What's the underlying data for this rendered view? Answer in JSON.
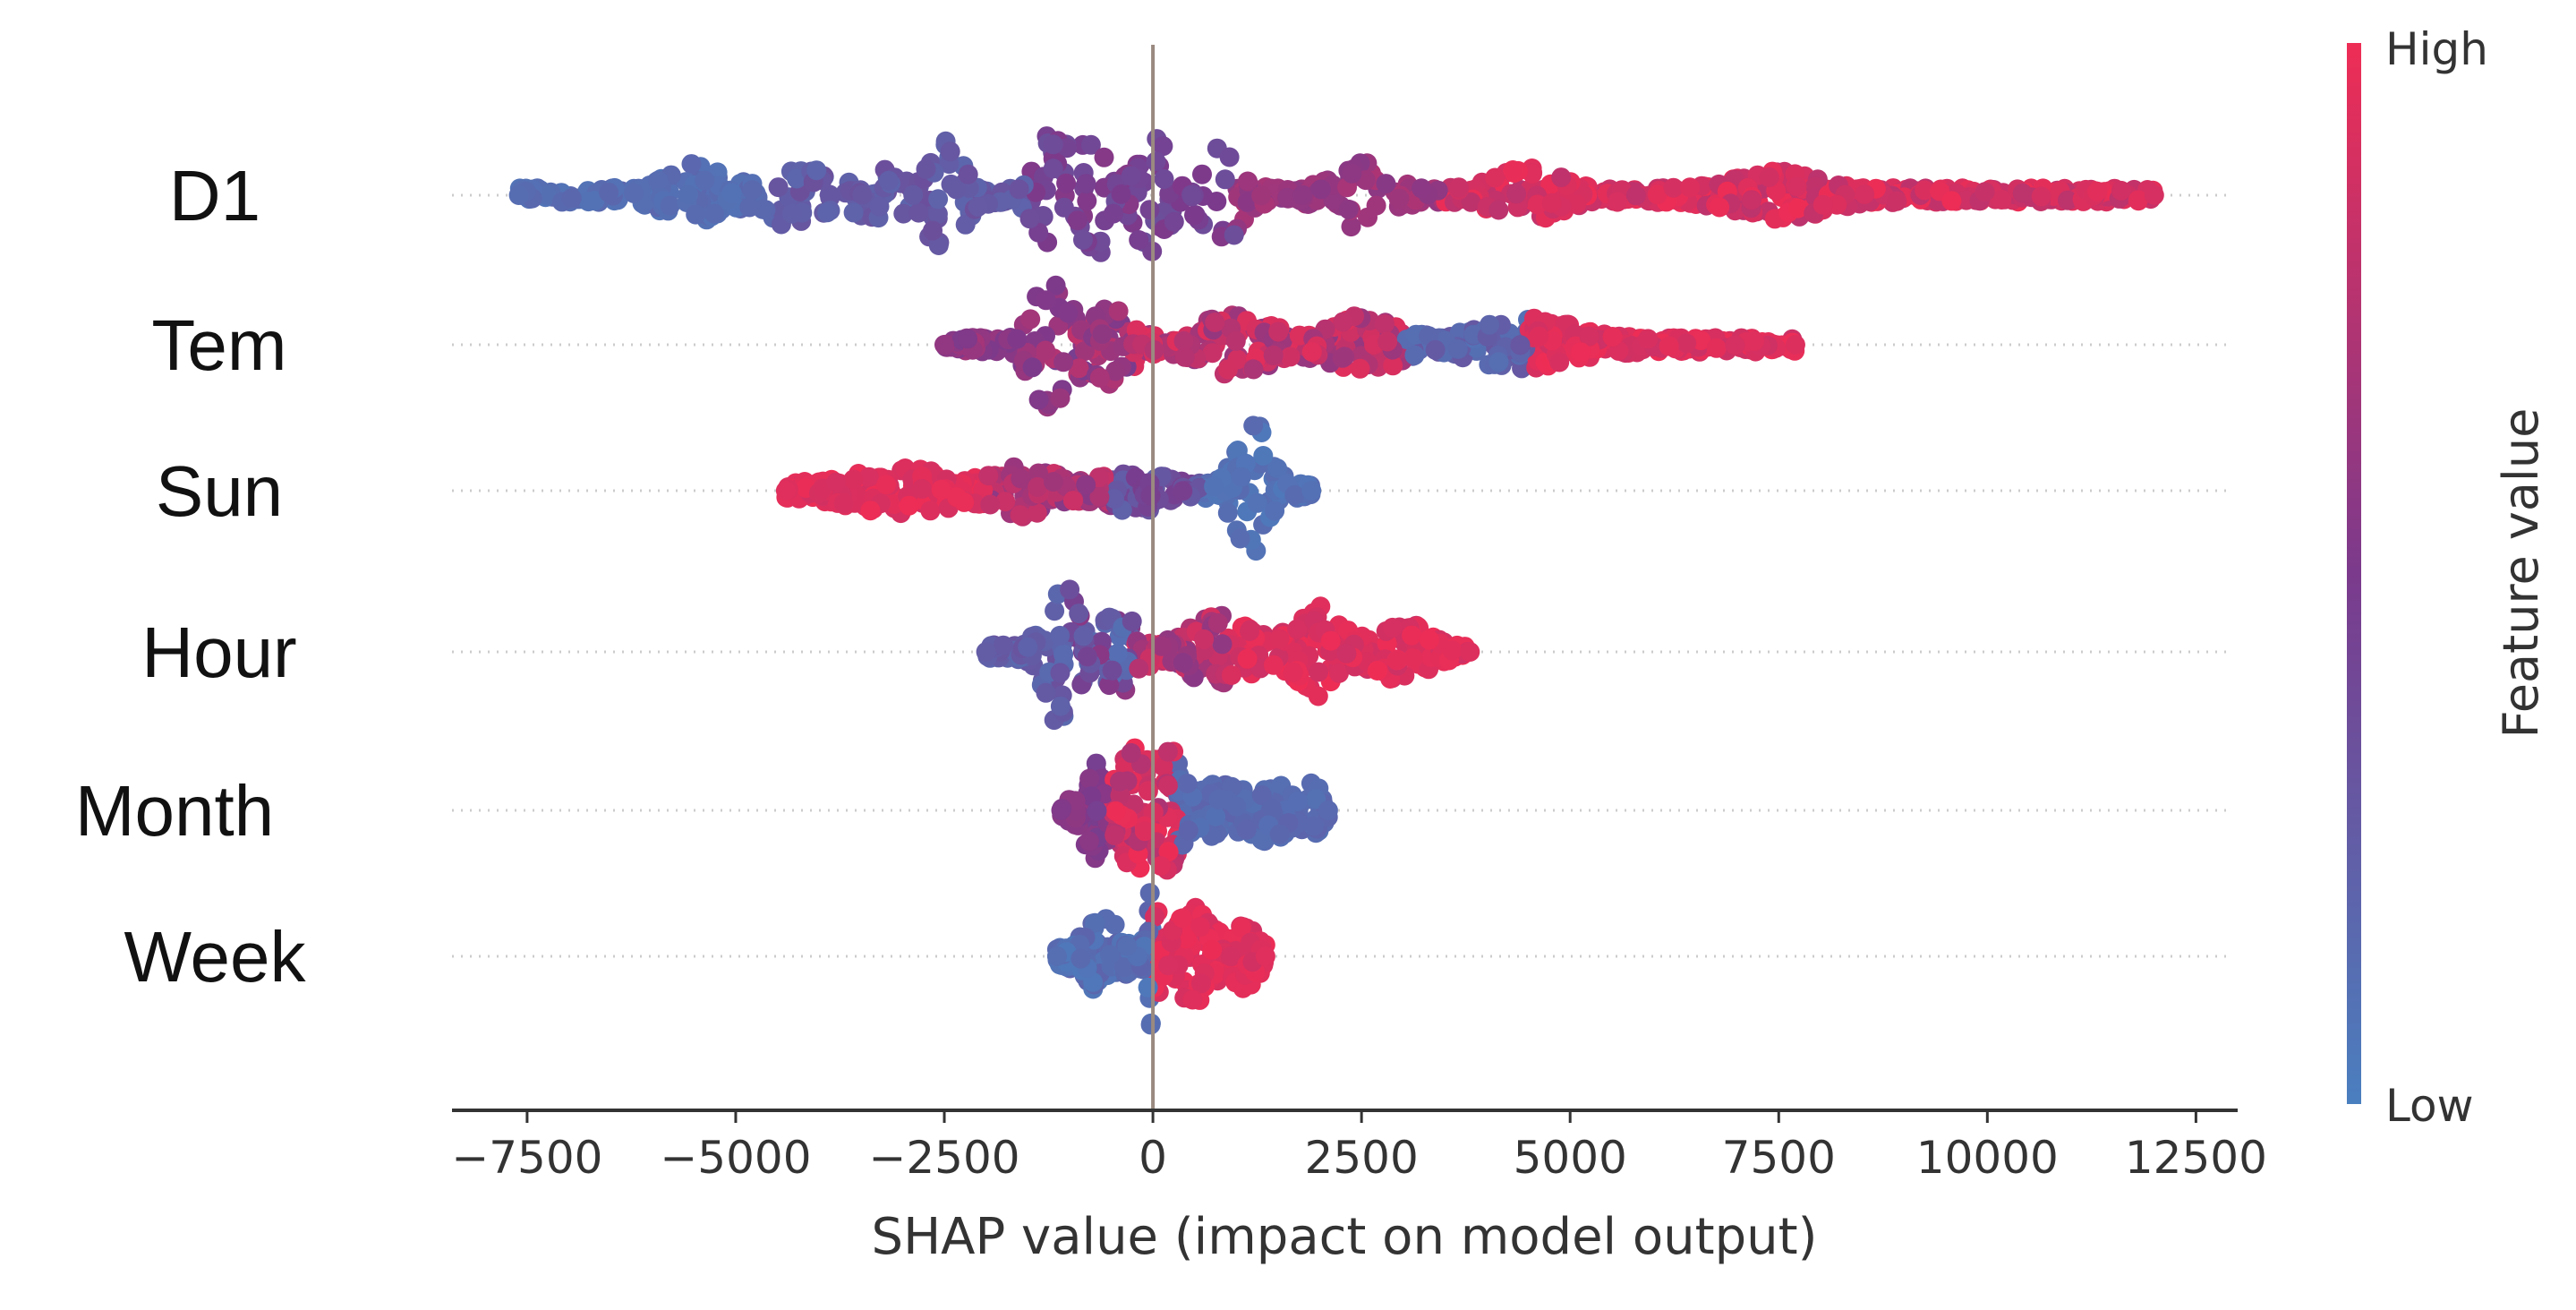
{
  "chart_data": {
    "type": "scatter",
    "subtype": "shap-beeswarm",
    "title": "",
    "xlabel": "SHAP value (impact on model output)",
    "ylabel": "",
    "xlim": [
      -8400,
      13000
    ],
    "xticks": [
      -7500,
      -5000,
      -2500,
      0,
      2500,
      5000,
      7500,
      10000,
      12500
    ],
    "xtick_labels": [
      "−7500",
      "−5000",
      "−2500",
      "0",
      "2500",
      "5000",
      "7500",
      "10000",
      "12500"
    ],
    "colorbar": {
      "title": "Feature value",
      "high_label": "High",
      "low_label": "Low",
      "high_color": "#ff0052",
      "low_color": "#008bfb"
    },
    "colors": {
      "low": "#4a7fbf",
      "mid": "#7b3a8c",
      "high": "#ee2d55",
      "zero_line": "#9a8a80",
      "axis": "#333333"
    },
    "grid": false,
    "features": [
      {
        "name": "D1",
        "min": -7600,
        "max": 12000,
        "segments": [
          [
            -7600,
            -4500,
            0.08,
            0.18
          ],
          [
            -4500,
            -1500,
            0.18,
            0.35
          ],
          [
            -1500,
            1000,
            0.35,
            0.55
          ],
          [
            1000,
            3500,
            0.55,
            0.72
          ],
          [
            3500,
            12000,
            0.78,
            1.0
          ]
        ],
        "bumps": [
          [
            -5500,
            0.35,
            450
          ],
          [
            -4300,
            0.4,
            400
          ],
          [
            -3300,
            0.3,
            350
          ],
          [
            -2500,
            0.7,
            300
          ],
          [
            -1200,
            0.9,
            250
          ],
          [
            -700,
            0.85,
            200
          ],
          [
            0,
            1.0,
            250
          ],
          [
            800,
            0.7,
            300
          ],
          [
            2500,
            0.4,
            400
          ],
          [
            4500,
            0.3,
            500
          ],
          [
            7500,
            0.25,
            700
          ]
        ]
      },
      {
        "name": "Tem",
        "min": -2500,
        "max": 7700,
        "segments": [
          [
            -2500,
            -1300,
            0.5,
            0.7
          ],
          [
            -1300,
            -300,
            0.45,
            0.8
          ],
          [
            -300,
            3000,
            0.6,
            0.95
          ],
          [
            3000,
            4500,
            0.1,
            0.3
          ],
          [
            4500,
            7700,
            0.85,
            1.0
          ]
        ],
        "bumps": [
          [
            -1200,
            1.0,
            300
          ],
          [
            -500,
            0.5,
            300
          ],
          [
            1000,
            0.4,
            500
          ],
          [
            2500,
            0.35,
            500
          ],
          [
            4500,
            0.3,
            700
          ]
        ]
      },
      {
        "name": "Sun",
        "min": -4400,
        "max": 1900,
        "segments": [
          [
            -4400,
            -2000,
            0.88,
            1.0
          ],
          [
            -2000,
            -500,
            0.55,
            0.85
          ],
          [
            -500,
            600,
            0.2,
            0.5
          ],
          [
            600,
            1900,
            0.05,
            0.15
          ]
        ],
        "bumps": [
          [
            -3000,
            0.25,
            800
          ],
          [
            -1500,
            0.3,
            400
          ],
          [
            -200,
            0.2,
            500
          ],
          [
            1200,
            1.0,
            250
          ]
        ]
      },
      {
        "name": "Hour",
        "min": -2000,
        "max": 3800,
        "segments": [
          [
            -2000,
            -1000,
            0.15,
            0.35
          ],
          [
            -1000,
            -200,
            0.1,
            0.6
          ],
          [
            -200,
            900,
            0.55,
            0.9
          ],
          [
            900,
            3800,
            0.85,
            1.0
          ]
        ],
        "bumps": [
          [
            -1100,
            1.0,
            250
          ],
          [
            -400,
            0.5,
            300
          ],
          [
            800,
            0.45,
            450
          ],
          [
            2000,
            0.55,
            400
          ],
          [
            3000,
            0.35,
            350
          ]
        ]
      },
      {
        "name": "Month",
        "min": -1100,
        "max": 2100,
        "segments": [
          [
            -1100,
            -500,
            0.45,
            0.6
          ],
          [
            -500,
            300,
            0.7,
            1.0
          ],
          [
            300,
            2100,
            0.1,
            0.2
          ]
        ],
        "bumps": [
          [
            -700,
            0.7,
            200
          ],
          [
            -200,
            1.0,
            200
          ],
          [
            200,
            0.8,
            200
          ],
          [
            800,
            0.3,
            300
          ],
          [
            1400,
            0.4,
            250
          ],
          [
            1900,
            0.3,
            150
          ]
        ]
      },
      {
        "name": "Week",
        "min": -1150,
        "max": 1350,
        "segments": [
          [
            -1150,
            0,
            0.05,
            0.2
          ],
          [
            0,
            1350,
            0.88,
            1.0
          ]
        ],
        "bumps": [
          [
            -600,
            0.45,
            300
          ],
          [
            0,
            1.0,
            80
          ],
          [
            500,
            0.6,
            300
          ],
          [
            1100,
            0.35,
            200
          ]
        ]
      }
    ]
  }
}
